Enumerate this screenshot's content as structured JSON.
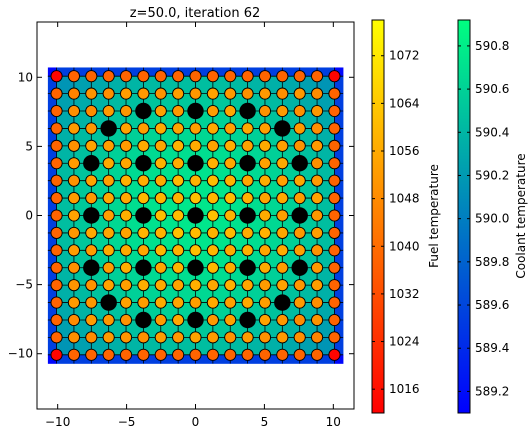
{
  "chart_data": {
    "type": "heatmap",
    "title": "z=50.0, iteration 62",
    "xlim": [
      -11.5,
      11.5
    ],
    "ylim": [
      -14,
      14
    ],
    "x_ticks": [
      -10,
      -5,
      0,
      5,
      10
    ],
    "x_tick_labels": [
      "−10",
      "−5",
      "0",
      "5",
      "10"
    ],
    "y_ticks": [
      -10,
      -5,
      0,
      5,
      10
    ],
    "y_tick_labels": [
      "−10",
      "−5",
      "0",
      "5",
      "10"
    ],
    "lattice": {
      "size": 17,
      "pitch": 1.26,
      "extent": [
        -10.71,
        10.71
      ],
      "guide_tubes": [
        [
          2,
          5
        ],
        [
          2,
          8
        ],
        [
          2,
          11
        ],
        [
          3,
          3
        ],
        [
          3,
          13
        ],
        [
          5,
          2
        ],
        [
          5,
          5
        ],
        [
          5,
          8
        ],
        [
          5,
          11
        ],
        [
          5,
          14
        ],
        [
          8,
          2
        ],
        [
          8,
          5
        ],
        [
          8,
          11
        ],
        [
          8,
          14
        ],
        [
          11,
          2
        ],
        [
          11,
          5
        ],
        [
          11,
          8
        ],
        [
          11,
          11
        ],
        [
          11,
          14
        ],
        [
          13,
          3
        ],
        [
          13,
          13
        ],
        [
          14,
          5
        ],
        [
          14,
          8
        ],
        [
          14,
          11
        ]
      ],
      "center_tube": [
        8,
        8
      ],
      "guide_tube_color": "#000000",
      "pin_outline_color": "#000000"
    },
    "fuel_colorbar": {
      "label": "Fuel temperature",
      "range": [
        1012,
        1078
      ],
      "ticks": [
        1016,
        1024,
        1032,
        1040,
        1048,
        1056,
        1064,
        1072
      ],
      "colormap": "autumn"
    },
    "coolant_colorbar": {
      "label": "Coolant temperature",
      "range": [
        589.1,
        590.92
      ],
      "ticks": [
        589.2,
        589.4,
        589.6,
        589.8,
        590.0,
        590.2,
        590.4,
        590.6,
        590.8
      ],
      "tick_labels": [
        "589.2",
        "589.4",
        "589.6",
        "589.8",
        "590.0",
        "590.2",
        "590.4",
        "590.6",
        "590.8"
      ],
      "colormap": "winter"
    },
    "fuel_temperature": {
      "corner": 1013,
      "edge": 1038,
      "inner_range": [
        1046,
        1062
      ]
    },
    "coolant_temperature": {
      "corner": 589.15,
      "edge": 589.55,
      "center": 590.75
    }
  }
}
